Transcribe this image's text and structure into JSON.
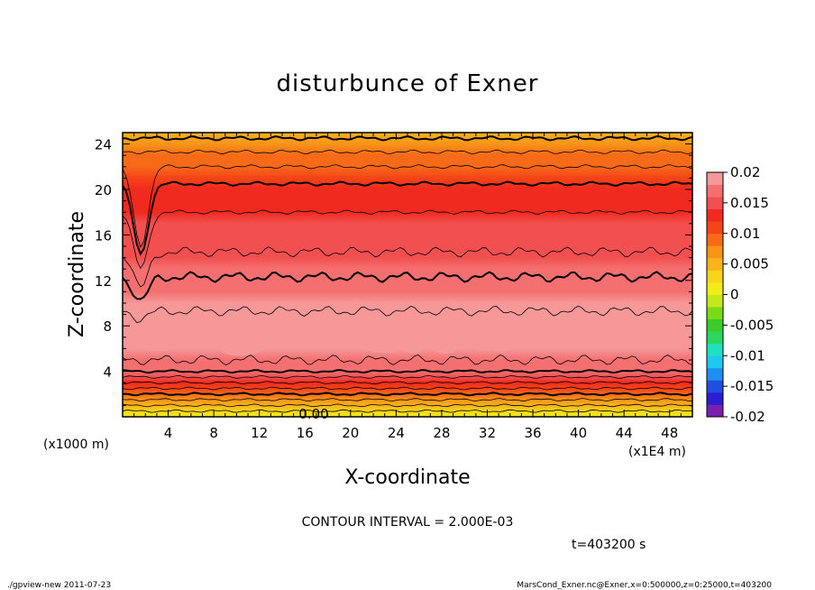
{
  "chart_data": {
    "type": "heatmap",
    "title": "disturbunce of Exner",
    "xlabel": "X-coordinate",
    "ylabel": "Z-coordinate",
    "x_unit": "(x1E4 m)",
    "y_unit": "(x1000 m)",
    "xlim": [
      0,
      50
    ],
    "ylim": [
      0,
      25
    ],
    "x_ticks": [
      "4",
      "8",
      "12",
      "16",
      "20",
      "24",
      "28",
      "32",
      "36",
      "40",
      "44",
      "48"
    ],
    "y_ticks": [
      "4",
      "8",
      "12",
      "16",
      "20",
      "24"
    ],
    "contour_interval_text": "CONTOUR INTERVAL = 2.000E-03",
    "contour_label": "0.00",
    "time_text": "t=403200 s",
    "colorbar": {
      "min": -0.02,
      "max": 0.02,
      "labels": [
        "0.02",
        "0.015",
        "0.01",
        "0.005",
        "0",
        "-0.005",
        "-0.01",
        "-0.015",
        "-0.02"
      ],
      "colors": [
        "#7a1fb0",
        "#2a1fd0",
        "#1f4fe0",
        "#1f8fef",
        "#1fc8f0",
        "#1fe0c0",
        "#2ad860",
        "#3ccc2a",
        "#7ada1a",
        "#c4e81a",
        "#f2ec1a",
        "#f8d41a",
        "#f8b41a",
        "#f89418",
        "#f66a18",
        "#f44418",
        "#f02a1e",
        "#f25050",
        "#f47070",
        "#f69898"
      ]
    },
    "profile": {
      "z": [
        0,
        0.5,
        1,
        1.5,
        2,
        2.5,
        3,
        3.5,
        4,
        5,
        6,
        7,
        8,
        9,
        10,
        11,
        12,
        13,
        14,
        15,
        16,
        17,
        18,
        19,
        20,
        21,
        22,
        23,
        24,
        25
      ],
      "value": [
        0.0005,
        0.0025,
        0.0045,
        0.0065,
        0.0085,
        0.0105,
        0.0125,
        0.0145,
        0.0165,
        0.0178,
        0.0186,
        0.0191,
        0.0193,
        0.0191,
        0.0186,
        0.0178,
        0.017,
        0.0162,
        0.0156,
        0.015,
        0.0146,
        0.0141,
        0.0135,
        0.0128,
        0.012,
        0.011,
        0.0098,
        0.0084,
        0.0068,
        0.0055
      ]
    }
  },
  "footer": {
    "left": "./gpview-new   2011-07-23",
    "right": "MarsCond_Exner.nc@Exner,x=0:500000,z=0:25000,t=403200"
  }
}
